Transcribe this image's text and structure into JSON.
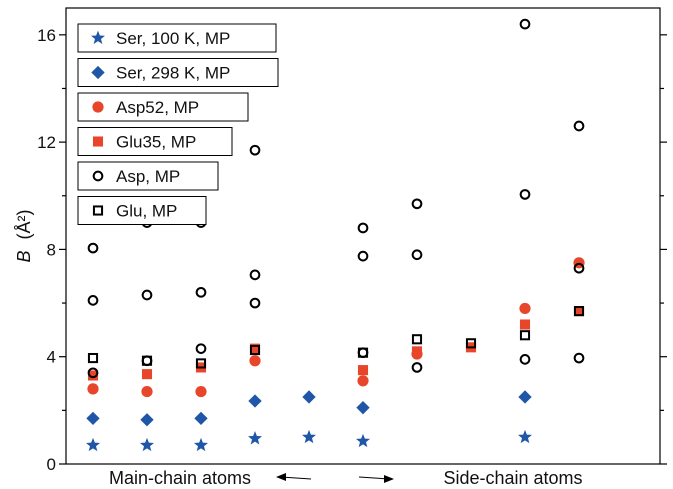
{
  "chart_data": {
    "type": "scatter",
    "title": "",
    "xlabel": "",
    "ylabel": {
      "symbol": "B",
      "unit": "(Å²)"
    },
    "ylim": [
      0,
      17.0
    ],
    "xlim": [
      0.5,
      11.5
    ],
    "yticks": [
      0,
      4,
      8,
      12,
      16
    ],
    "legend_position": "top-left",
    "series": [
      {
        "name": "Ser, 100 K, MP",
        "marker": "star",
        "color": "#1f56a8",
        "filled": true,
        "points": [
          [
            1,
            0.7
          ],
          [
            2,
            0.7
          ],
          [
            3,
            0.7
          ],
          [
            4,
            0.95
          ],
          [
            5,
            1.0
          ],
          [
            6,
            0.85
          ],
          [
            9,
            1.0
          ]
        ]
      },
      {
        "name": "Ser, 298 K, MP",
        "marker": "diamond",
        "color": "#1f56a8",
        "filled": true,
        "points": [
          [
            1,
            1.7
          ],
          [
            2,
            1.65
          ],
          [
            3,
            1.7
          ],
          [
            4,
            2.35
          ],
          [
            5,
            2.5
          ],
          [
            6,
            2.1
          ],
          [
            9,
            2.5
          ]
        ]
      },
      {
        "name": "Asp52, MP",
        "marker": "circle",
        "color": "#e8462a",
        "filled": true,
        "points": [
          [
            1,
            2.8
          ],
          [
            2,
            2.7
          ],
          [
            3,
            2.7
          ],
          [
            4,
            3.85
          ],
          [
            6,
            3.1
          ],
          [
            7,
            4.1
          ],
          [
            9,
            5.8
          ],
          [
            10,
            7.5
          ]
        ]
      },
      {
        "name": "Glu35, MP",
        "marker": "square",
        "color": "#e8462a",
        "filled": true,
        "points": [
          [
            1,
            3.3
          ],
          [
            2,
            3.35
          ],
          [
            3,
            3.6
          ],
          [
            4,
            4.3
          ],
          [
            6,
            3.5
          ],
          [
            7,
            4.2
          ],
          [
            8,
            4.35
          ],
          [
            9,
            5.2
          ],
          [
            10,
            5.7
          ]
        ]
      },
      {
        "name": "Asp, MP",
        "marker": "circle",
        "color": "#000000",
        "filled": false,
        "points": [
          [
            1,
            8.05
          ],
          [
            1,
            6.1
          ],
          [
            1,
            3.4
          ],
          [
            2,
            9.0
          ],
          [
            2,
            6.3
          ],
          [
            2,
            3.85
          ],
          [
            3,
            9.0
          ],
          [
            3,
            6.4
          ],
          [
            3,
            4.3
          ],
          [
            4,
            11.7
          ],
          [
            4,
            7.05
          ],
          [
            4,
            6.0
          ],
          [
            6,
            8.8
          ],
          [
            6,
            7.75
          ],
          [
            6,
            4.15
          ],
          [
            7,
            9.7
          ],
          [
            7,
            7.8
          ],
          [
            7,
            3.6
          ],
          [
            9,
            16.4
          ],
          [
            9,
            10.05
          ],
          [
            9,
            3.9
          ],
          [
            10,
            12.6
          ],
          [
            10,
            7.3
          ],
          [
            10,
            3.95
          ]
        ]
      },
      {
        "name": "Glu, MP",
        "marker": "square",
        "color": "#000000",
        "filled": false,
        "points": [
          [
            1,
            3.95
          ],
          [
            2,
            3.85
          ],
          [
            3,
            3.75
          ],
          [
            4,
            4.25
          ],
          [
            6,
            4.15
          ],
          [
            7,
            4.65
          ],
          [
            8,
            4.5
          ],
          [
            9,
            4.8
          ],
          [
            10,
            5.7
          ]
        ]
      }
    ],
    "annotations": {
      "main_chain": "Main-chain atoms",
      "side_chain": "Side-chain atoms"
    }
  }
}
